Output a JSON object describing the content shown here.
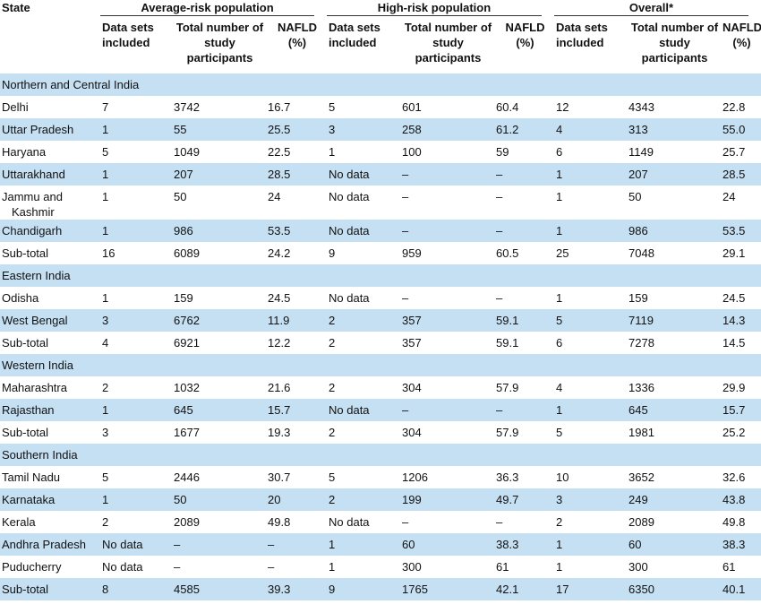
{
  "table": {
    "header": {
      "state": "State",
      "groups": [
        "Average-risk population",
        "High-risk population",
        "Overall*"
      ],
      "columns": [
        "Data sets included",
        "Total number of study participants",
        "NAFLD (%)",
        "Data sets included",
        "Total number of study participants",
        "NAFLD (%)",
        "Data sets included",
        "Total number of study participants",
        "NAFLD (%)"
      ]
    },
    "rows": [
      [
        "Northern and Central India"
      ],
      [
        "Delhi",
        "7",
        "3742",
        "16.7",
        "5",
        "601",
        "60.4",
        "12",
        "4343",
        "22.8"
      ],
      [
        "Uttar Pradesh",
        "1",
        "55",
        "25.5",
        "3",
        "258",
        "61.2",
        "4",
        "313",
        "55.0"
      ],
      [
        "Haryana",
        "5",
        "1049",
        "22.5",
        "1",
        "100",
        "59",
        "6",
        "1149",
        "25.7"
      ],
      [
        "Uttarakhand",
        "1",
        "207",
        "28.5",
        "No data",
        "–",
        "–",
        "1",
        "207",
        "28.5"
      ],
      [
        "Jammu and Kashmir",
        "1",
        "50",
        "24",
        "No data",
        "–",
        "–",
        "1",
        "50",
        "24"
      ],
      [
        "Chandigarh",
        "1",
        "986",
        "53.5",
        "No data",
        "–",
        "–",
        "1",
        "986",
        "53.5"
      ],
      [
        "Sub-total",
        "16",
        "6089",
        "24.2",
        "9",
        "959",
        "60.5",
        "25",
        "7048",
        "29.1"
      ],
      [
        "Eastern India"
      ],
      [
        "Odisha",
        "1",
        "159",
        "24.5",
        "No data",
        "–",
        "–",
        "1",
        "159",
        "24.5"
      ],
      [
        "West Bengal",
        "3",
        "6762",
        "11.9",
        "2",
        "357",
        "59.1",
        "5",
        "7119",
        "14.3"
      ],
      [
        "Sub-total",
        "4",
        "6921",
        "12.2",
        "2",
        "357",
        "59.1",
        "6",
        "7278",
        "14.5"
      ],
      [
        "Western India"
      ],
      [
        "Maharashtra",
        "2",
        "1032",
        "21.6",
        "2",
        "304",
        "57.9",
        "4",
        "1336",
        "29.9"
      ],
      [
        "Rajasthan",
        "1",
        "645",
        "15.7",
        "No data",
        "–",
        "–",
        "1",
        "645",
        "15.7"
      ],
      [
        "Sub-total",
        "3",
        "1677",
        "19.3",
        "2",
        "304",
        "57.9",
        "5",
        "1981",
        "25.2"
      ],
      [
        "Southern India"
      ],
      [
        "Tamil Nadu",
        "5",
        "2446",
        "30.7",
        "5",
        "1206",
        "36.3",
        "10",
        "3652",
        "32.6"
      ],
      [
        "Karnataka",
        "1",
        "50",
        "20",
        "2",
        "199",
        "49.7",
        "3",
        "249",
        "43.8"
      ],
      [
        "Kerala",
        "2",
        "2089",
        "49.8",
        "No data",
        "–",
        "–",
        "2",
        "2089",
        "49.8"
      ],
      [
        "Andhra Pradesh",
        "No data",
        "–",
        "–",
        "1",
        "60",
        "38.3",
        "1",
        "60",
        "38.3"
      ],
      [
        "Puducherry",
        "No data",
        "–",
        "–",
        "1",
        "300",
        "61",
        "1",
        "300",
        "61"
      ],
      [
        "Sub-total",
        "8",
        "4585",
        "39.3",
        "9",
        "1765",
        "42.1",
        "17",
        "6350",
        "40.1"
      ]
    ]
  }
}
